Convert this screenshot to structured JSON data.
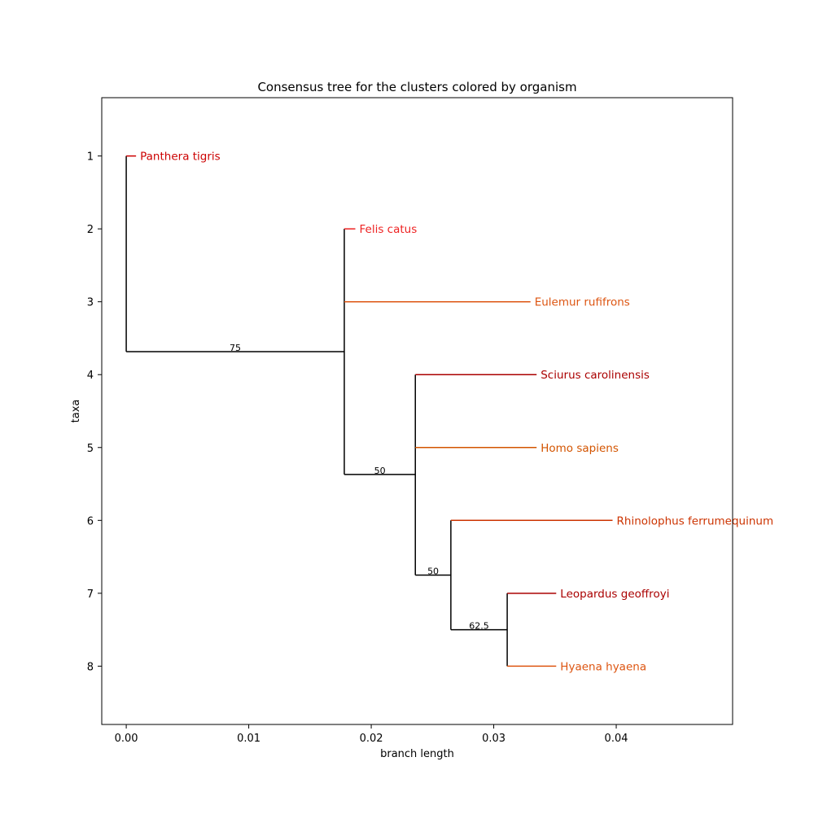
{
  "chart_data": {
    "type": "tree",
    "title": "Consensus tree for the clusters colored by organism",
    "xlabel": "branch length",
    "ylabel": "taxa",
    "xlim": [
      -0.002,
      0.0495
    ],
    "ylim": [
      0.2,
      8.8
    ],
    "x_ticks": [
      0.0,
      0.01,
      0.02,
      0.03,
      0.04
    ],
    "x_tick_labels": [
      "0.00",
      "0.01",
      "0.02",
      "0.03",
      "0.04"
    ],
    "y_ticks": [
      1,
      2,
      3,
      4,
      5,
      6,
      7,
      8
    ],
    "y_tick_labels": [
      "1",
      "2",
      "3",
      "4",
      "5",
      "6",
      "7",
      "8"
    ],
    "grid": false,
    "leaves": [
      {
        "name": "Panthera tigris",
        "taxon": 1,
        "x": 0.0008,
        "parent_x": 0.0,
        "color": "#cc0000"
      },
      {
        "name": "Felis catus",
        "taxon": 2,
        "x": 0.0187,
        "parent_x": 0.0178,
        "color": "#ee2222"
      },
      {
        "name": "Eulemur rufifrons",
        "taxon": 3,
        "x": 0.033,
        "parent_x": 0.0178,
        "color": "#dd5511"
      },
      {
        "name": "Sciurus carolinensis",
        "taxon": 4,
        "x": 0.0335,
        "parent_x": 0.0236,
        "color": "#aa0000"
      },
      {
        "name": "Homo sapiens",
        "taxon": 5,
        "x": 0.0335,
        "parent_x": 0.0236,
        "color": "#d35400"
      },
      {
        "name": "Rhinolophus ferrumequinum",
        "taxon": 6,
        "x": 0.0397,
        "parent_x": 0.0265,
        "color": "#cc3300"
      },
      {
        "name": "Leopardus geoffroyi",
        "taxon": 7,
        "x": 0.0351,
        "parent_x": 0.0311,
        "color": "#aa0000"
      },
      {
        "name": "Hyaena hyaena",
        "taxon": 8,
        "x": 0.0351,
        "parent_x": 0.0311,
        "color": "#dd5511"
      }
    ],
    "clades": [
      {
        "x": 0.0,
        "parent_x": 0.0,
        "y": 2.35,
        "y_min": 1.0,
        "y_max": 3.685,
        "support": ""
      },
      {
        "x": 0.0178,
        "parent_x": 0.0,
        "y": 3.685,
        "y_min": 2.0,
        "y_max": 5.37,
        "support": "75"
      },
      {
        "x": 0.0236,
        "parent_x": 0.0178,
        "y": 5.37,
        "y_min": 4.0,
        "y_max": 6.75,
        "support": "50"
      },
      {
        "x": 0.0265,
        "parent_x": 0.0236,
        "y": 6.75,
        "y_min": 6.0,
        "y_max": 7.5,
        "support": "50"
      },
      {
        "x": 0.0311,
        "parent_x": 0.0265,
        "y": 7.5,
        "y_min": 7.0,
        "y_max": 8.0,
        "support": "62.5"
      }
    ]
  }
}
